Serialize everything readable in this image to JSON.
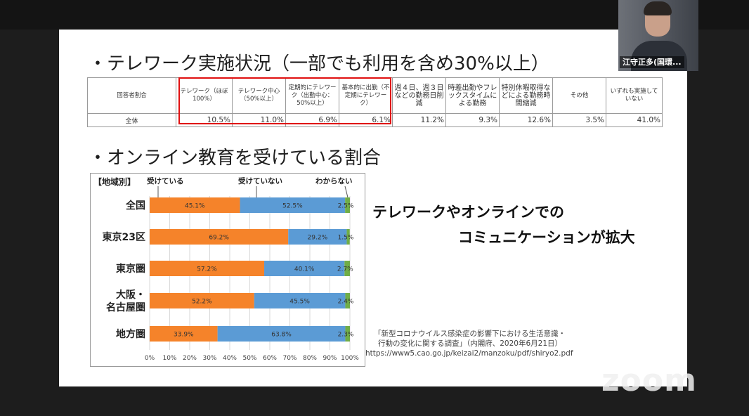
{
  "slide": {
    "heading1": "・テレワーク実施状況（一部でも利用を含め30%以上）",
    "heading2": "・オンライン教育を受けている割合",
    "table": {
      "headers": [
        "回答者割合",
        "テレワーク（ほぼ100%）",
        "テレワーク中心（50%以上）",
        "定期的にテレワーク（出勤中心：50%以上）",
        "基本的に出勤（不定期にテレワーク）",
        "週４日、週３日などの勤務日削減",
        "時差出勤やフレックスタイムによる勤務",
        "特別休暇取得などによる勤務時間縮減",
        "その他",
        "いずれも実施していない"
      ],
      "row_label": "全体",
      "values": [
        "10.5%",
        "11.0%",
        "6.9%",
        "6.1%",
        "11.2%",
        "9.3%",
        "12.6%",
        "3.5%",
        "41.0%"
      ]
    },
    "callout_line1": "テレワークやオンラインでの",
    "callout_line2": "コミュニケーションが拡大",
    "source_line1": "「新型コロナウイルス感染症の影響下における生活意識・",
    "source_line2": "行動の変化に関する調査」（内閣府、2020年6月21日）",
    "source_line3": "https://www5.cao.go.jp/keizai2/manzoku/pdf/shiryo2.pdf"
  },
  "chart_data": {
    "type": "bar",
    "orientation": "horizontal-stacked",
    "corner_label": "【地域別】",
    "categories": [
      "全国",
      "東京23区",
      "東京圏",
      "大阪・名古屋圏",
      "地方圏"
    ],
    "category_lines": [
      [
        "全国"
      ],
      [
        "東京23区"
      ],
      [
        "東京圏"
      ],
      [
        "大阪・",
        "名古屋圏"
      ],
      [
        "地方圏"
      ]
    ],
    "series": [
      {
        "name": "受けている",
        "color": "#f5832a",
        "values": [
          45.1,
          69.2,
          57.2,
          52.2,
          33.9
        ],
        "labels": [
          "45.1%",
          "69.2%",
          "57.2%",
          "52.2%",
          "33.9%"
        ]
      },
      {
        "name": "受けていない",
        "color": "#5b9bd5",
        "values": [
          52.5,
          29.2,
          40.1,
          45.5,
          63.8
        ],
        "labels": [
          "52.5%",
          "29.2%",
          "40.1%",
          "45.5%",
          "63.8%"
        ]
      },
      {
        "name": "わからない",
        "color": "#70ad47",
        "values": [
          2.5,
          1.5,
          2.7,
          2.4,
          2.3
        ],
        "labels": [
          "2.5%",
          "1.5%",
          "2.7%",
          "2.4%",
          "2.3%"
        ]
      }
    ],
    "xlim": [
      0,
      100
    ],
    "ticks": [
      "0%",
      "10%",
      "20%",
      "30%",
      "40%",
      "50%",
      "60%",
      "70%",
      "80%",
      "90%",
      "100%"
    ],
    "grid": true
  },
  "participant": {
    "name": "江守正多(国環..."
  },
  "watermark": "zoom"
}
